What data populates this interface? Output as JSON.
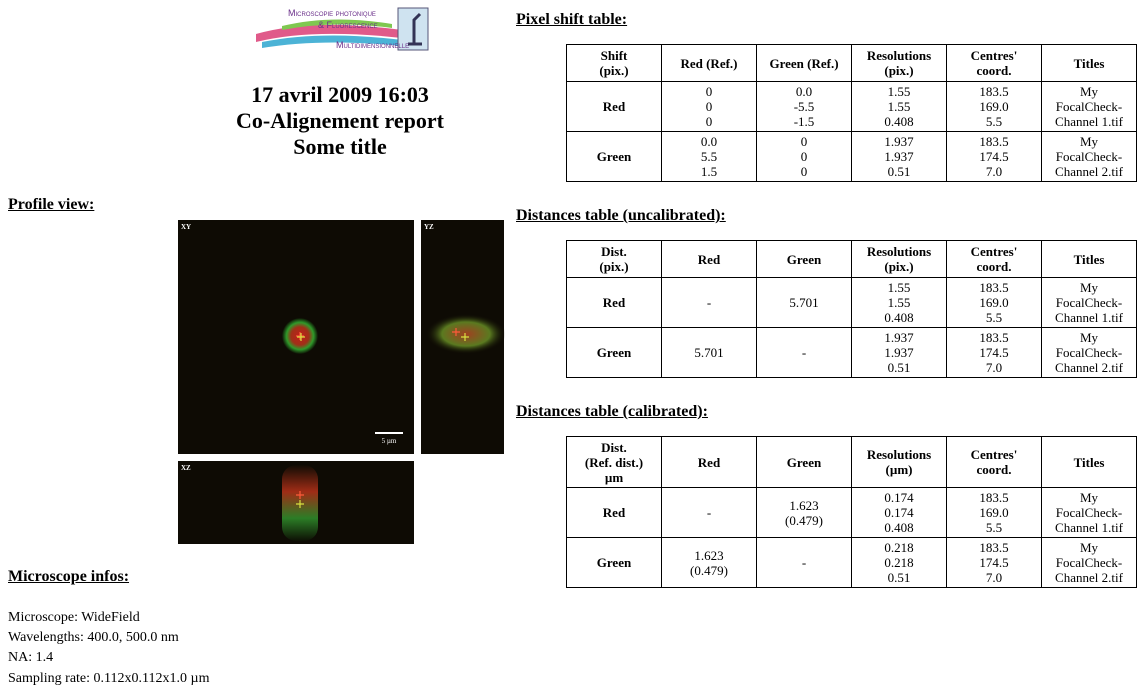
{
  "logo": {
    "lines": [
      "Microscopie photonique",
      "& Fluorescence",
      "Multidimensionnelle"
    ]
  },
  "header": {
    "date": "17 avril 2009 16:03",
    "title": "Co-Alignement report",
    "subtitle": "Some title"
  },
  "profile_view": {
    "heading": "Profile view:",
    "panels": {
      "xy": "XY",
      "yz": "YZ",
      "xz": "XZ"
    },
    "scale_bar": "5 µm"
  },
  "microscope_infos": {
    "heading": "Microscope infos:",
    "lines": [
      "Microscope: WideField",
      "Wavelengths: 400.0, 500.0 nm",
      "NA: 1.4",
      "Sampling rate: 0.112x0.112x1.0 µm"
    ]
  },
  "tables": [
    {
      "title": "Pixel shift table:",
      "header": [
        [
          "Shift",
          "(pix.)"
        ],
        [
          "Red (Ref.)"
        ],
        [
          "Green (Ref.)"
        ],
        [
          "Resolutions",
          "(pix.)"
        ],
        [
          "Centres'",
          "coord."
        ],
        [
          "Titles"
        ]
      ],
      "rows": [
        [
          [
            "Red"
          ],
          [
            "0",
            "0",
            "0"
          ],
          [
            "0.0",
            "-5.5",
            "-1.5"
          ],
          [
            "1.55",
            "1.55",
            "0.408"
          ],
          [
            "183.5",
            "169.0",
            "5.5"
          ],
          [
            "My",
            "FocalCheck-",
            "Channel 1.tif"
          ]
        ],
        [
          [
            "Green"
          ],
          [
            "0.0",
            "5.5",
            "1.5"
          ],
          [
            "0",
            "0",
            "0"
          ],
          [
            "1.937",
            "1.937",
            "0.51"
          ],
          [
            "183.5",
            "174.5",
            "7.0"
          ],
          [
            "My",
            "FocalCheck-",
            "Channel 2.tif"
          ]
        ]
      ]
    },
    {
      "title": "Distances table (uncalibrated):",
      "header": [
        [
          "Dist.",
          "(pix.)"
        ],
        [
          "Red"
        ],
        [
          "Green"
        ],
        [
          "Resolutions",
          "(pix.)"
        ],
        [
          "Centres'",
          "coord."
        ],
        [
          "Titles"
        ]
      ],
      "rows": [
        [
          [
            "Red"
          ],
          [
            "-"
          ],
          [
            "5.701"
          ],
          [
            "1.55",
            "1.55",
            "0.408"
          ],
          [
            "183.5",
            "169.0",
            "5.5"
          ],
          [
            "My",
            "FocalCheck-",
            "Channel 1.tif"
          ]
        ],
        [
          [
            "Green"
          ],
          [
            "5.701"
          ],
          [
            "-"
          ],
          [
            "1.937",
            "1.937",
            "0.51"
          ],
          [
            "183.5",
            "174.5",
            "7.0"
          ],
          [
            "My",
            "FocalCheck-",
            "Channel 2.tif"
          ]
        ]
      ]
    },
    {
      "title": "Distances table (calibrated):",
      "header": [
        [
          "Dist.",
          "(Ref. dist.)",
          "µm"
        ],
        [
          "Red"
        ],
        [
          "Green"
        ],
        [
          "Resolutions",
          "(µm)"
        ],
        [
          "Centres'",
          "coord."
        ],
        [
          "Titles"
        ]
      ],
      "rows": [
        [
          [
            "Red"
          ],
          [
            "-"
          ],
          [
            "1.623",
            "(0.479)"
          ],
          [
            "0.174",
            "0.174",
            "0.408"
          ],
          [
            "183.5",
            "169.0",
            "5.5"
          ],
          [
            "My",
            "FocalCheck-",
            "Channel 1.tif"
          ]
        ],
        [
          [
            "Green"
          ],
          [
            "1.623",
            "(0.479)"
          ],
          [
            "-"
          ],
          [
            "0.218",
            "0.218",
            "0.51"
          ],
          [
            "183.5",
            "174.5",
            "7.0"
          ],
          [
            "My",
            "FocalCheck-",
            "Channel 2.tif"
          ]
        ]
      ]
    }
  ]
}
